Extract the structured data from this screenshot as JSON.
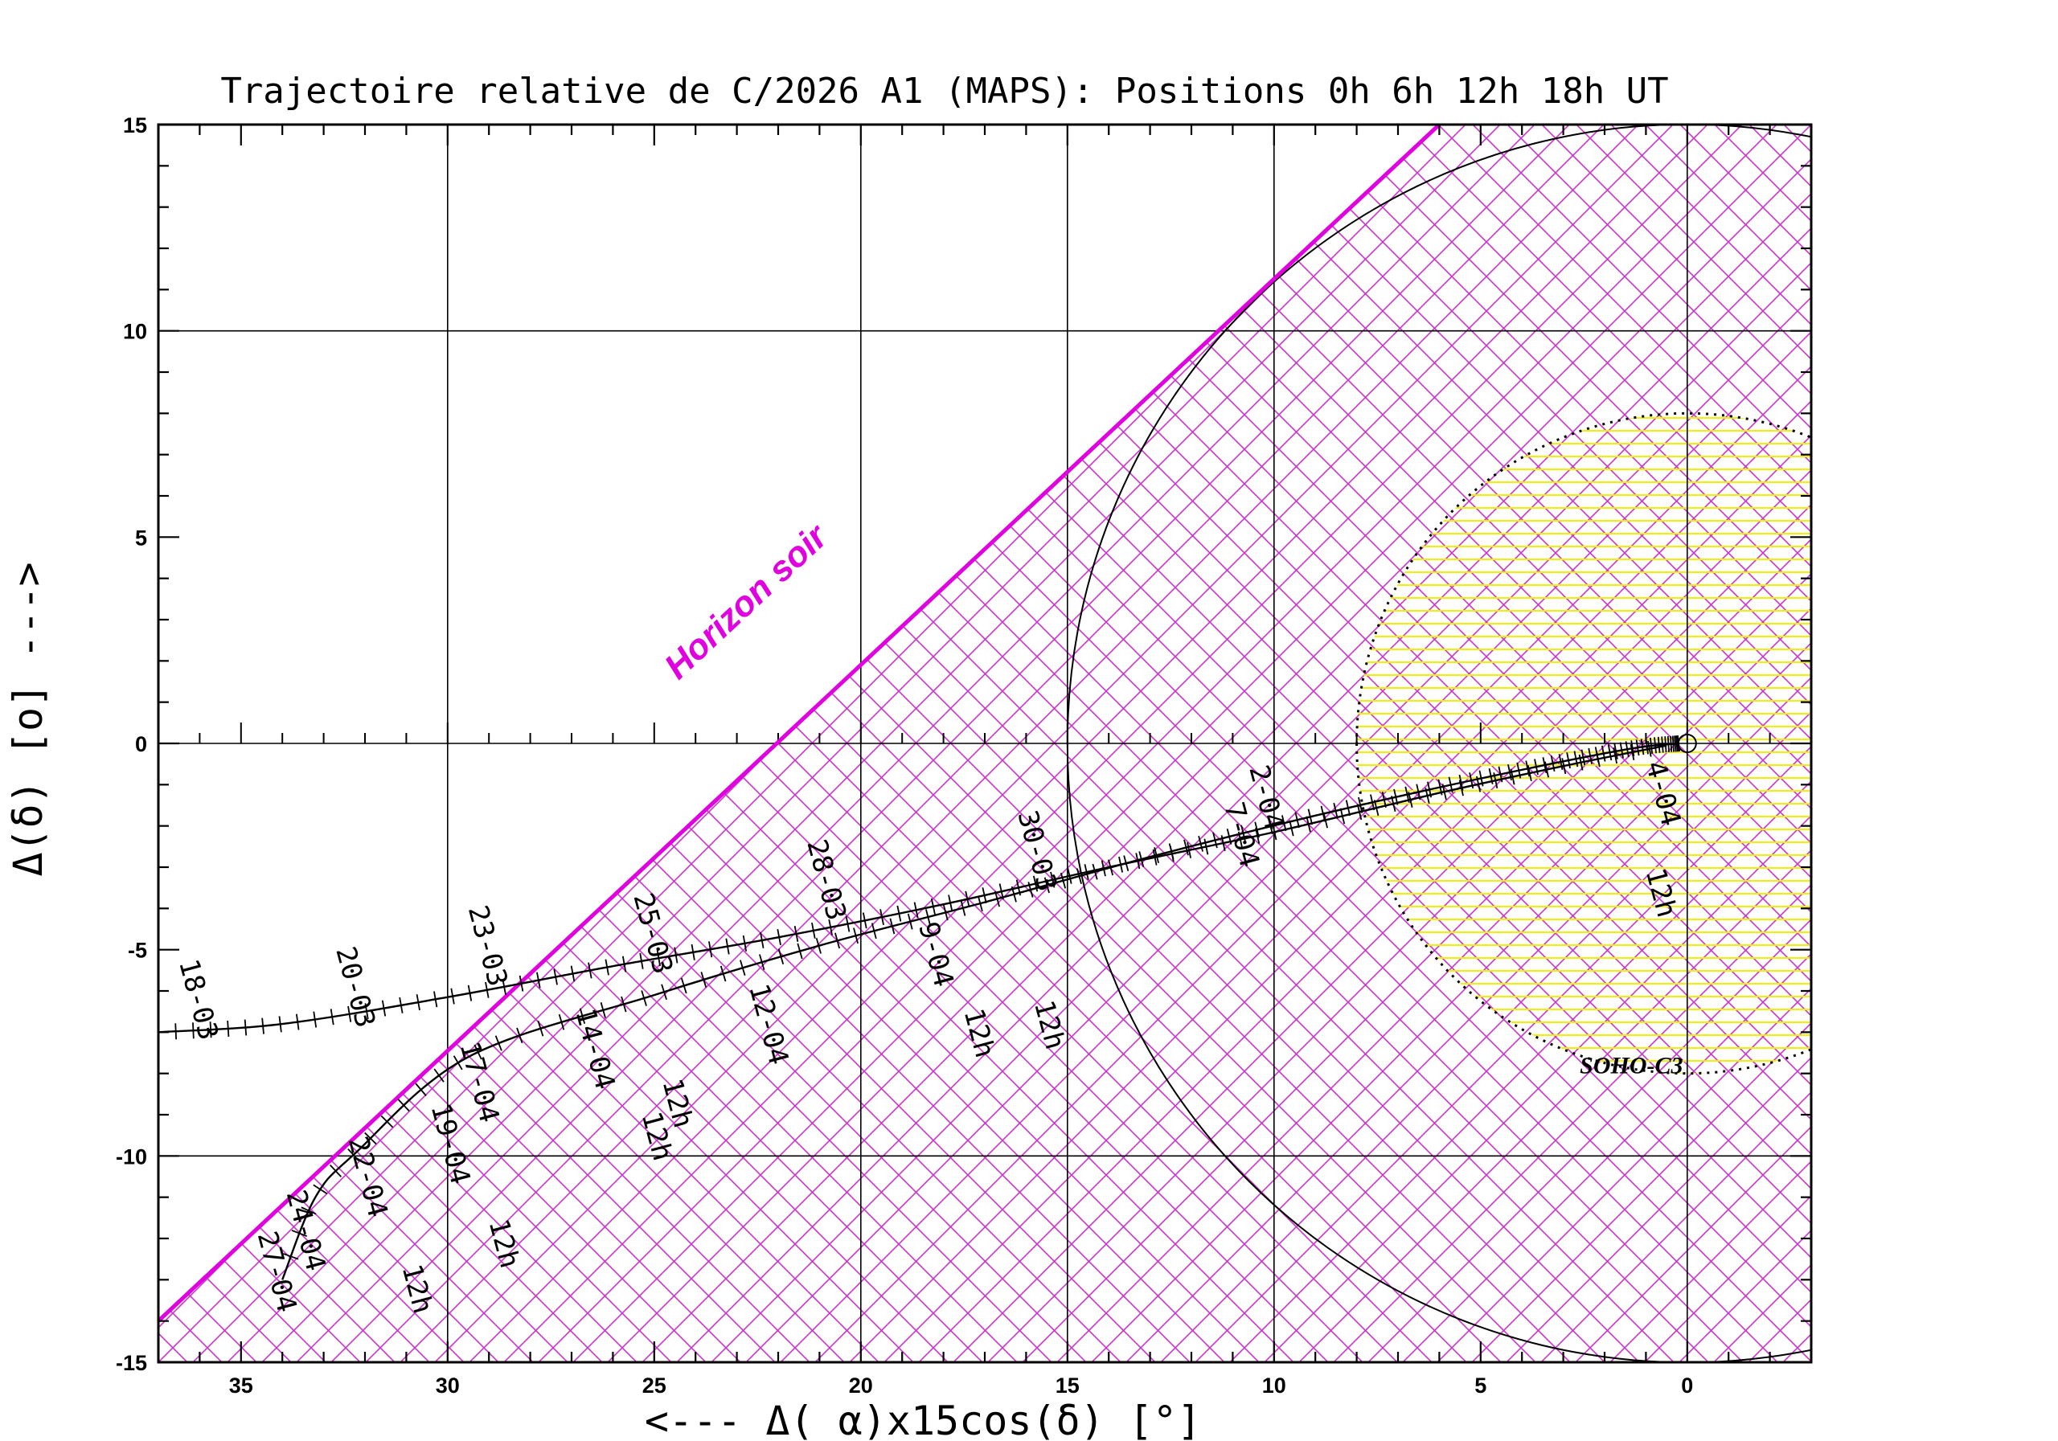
{
  "chart_data": {
    "type": "scatter",
    "title": "Trajectoire relative de C/2026 A1 (MAPS): Positions 0h 6h 12h 18h UT",
    "xlabel": "<--- Δ( α)x15cos(δ) [°]",
    "ylabel": "Δ(δ) [o] --->",
    "xlim": [
      37,
      -3
    ],
    "ylim": [
      -15,
      15
    ],
    "x_ticks": [
      "35",
      "30",
      "25",
      "20",
      "15",
      "10",
      "5",
      "0"
    ],
    "y_ticks": [
      "15",
      "10",
      "5",
      "0",
      "-5",
      "-10",
      "-15"
    ],
    "grid": true,
    "colors": {
      "horizon": "#e000e0",
      "hatch": "#cc33cc",
      "soho": "#f0f000",
      "axes": "#000000"
    },
    "horizon": {
      "label": "Horizon soir",
      "points": [
        [
          37,
          -14
        ],
        [
          6,
          15
        ]
      ]
    },
    "circle_15deg": {
      "center": [
        0,
        0
      ],
      "radius": 15
    },
    "soho_c3": {
      "label": "SOHO-C3",
      "center": [
        0,
        0
      ],
      "radius": 8
    },
    "series": [
      {
        "points": [
          [
            37,
            -7.0
          ],
          [
            34,
            -6.8
          ],
          [
            30,
            -6.15
          ],
          [
            26,
            -5.4
          ],
          [
            22,
            -4.7
          ],
          [
            18,
            -3.9
          ],
          [
            14,
            -3.0
          ],
          [
            10,
            -2.15
          ],
          [
            6,
            -1.2
          ],
          [
            3,
            -0.55
          ],
          [
            0.5,
            -0.05
          ]
        ],
        "labels": [
          {
            "text": "18-03",
            "x": 36.5,
            "y": -5.3
          },
          {
            "text": "20-03",
            "x": 32.7,
            "y": -5.0
          },
          {
            "text": "23-03",
            "x": 29.5,
            "y": -4.0
          },
          {
            "text": "25-03",
            "x": 25.5,
            "y": -3.7
          },
          {
            "text": "28-03",
            "x": 21.3,
            "y": -2.4
          },
          {
            "text": "30-03",
            "x": 16.2,
            "y": -1.7
          },
          {
            "text": "2-04",
            "x": 10.6,
            "y": -0.6
          },
          {
            "text": "4-04",
            "x": 1.0,
            "y": -0.5
          }
        ]
      },
      {
        "points": [
          [
            34.0,
            -13.0
          ],
          [
            33.2,
            -11.0
          ],
          [
            32.2,
            -9.9
          ],
          [
            29.5,
            -7.6
          ],
          [
            25.0,
            -6.1
          ],
          [
            21.0,
            -4.9
          ],
          [
            17.0,
            -3.85
          ],
          [
            13.0,
            -2.75
          ],
          [
            9.0,
            -1.75
          ],
          [
            5.0,
            -0.85
          ],
          [
            1.5,
            -0.15
          ],
          [
            0.2,
            0.0
          ]
        ],
        "labels": [
          {
            "text": "27-04",
            "x": 34.6,
            "y": -11.9
          },
          {
            "text": "24-04",
            "x": 33.9,
            "y": -10.9
          },
          {
            "text": "22-04",
            "x": 32.4,
            "y": -9.6
          },
          {
            "text": "19-04",
            "x": 30.4,
            "y": -8.8
          },
          {
            "text": "17-04",
            "x": 29.7,
            "y": -7.3
          },
          {
            "text": "14-04",
            "x": 26.9,
            "y": -6.5
          },
          {
            "text": "12-04",
            "x": 22.7,
            "y": -5.9
          },
          {
            "text": "9-04",
            "x": 18.6,
            "y": -4.4
          },
          {
            "text": "7-04",
            "x": 11.2,
            "y": -1.5
          }
        ]
      }
    ],
    "annotations": [
      {
        "text": "12h",
        "x": 1.0,
        "y": -3.1
      },
      {
        "text": "12h",
        "x": 15.8,
        "y": -6.3
      },
      {
        "text": "12h",
        "x": 17.5,
        "y": -6.5
      },
      {
        "text": "12h",
        "x": 24.8,
        "y": -8.2
      },
      {
        "text": "12h",
        "x": 25.3,
        "y": -9.0
      },
      {
        "text": "12h",
        "x": 29.0,
        "y": -11.6
      },
      {
        "text": "12h",
        "x": 31.1,
        "y": -12.7
      }
    ]
  }
}
